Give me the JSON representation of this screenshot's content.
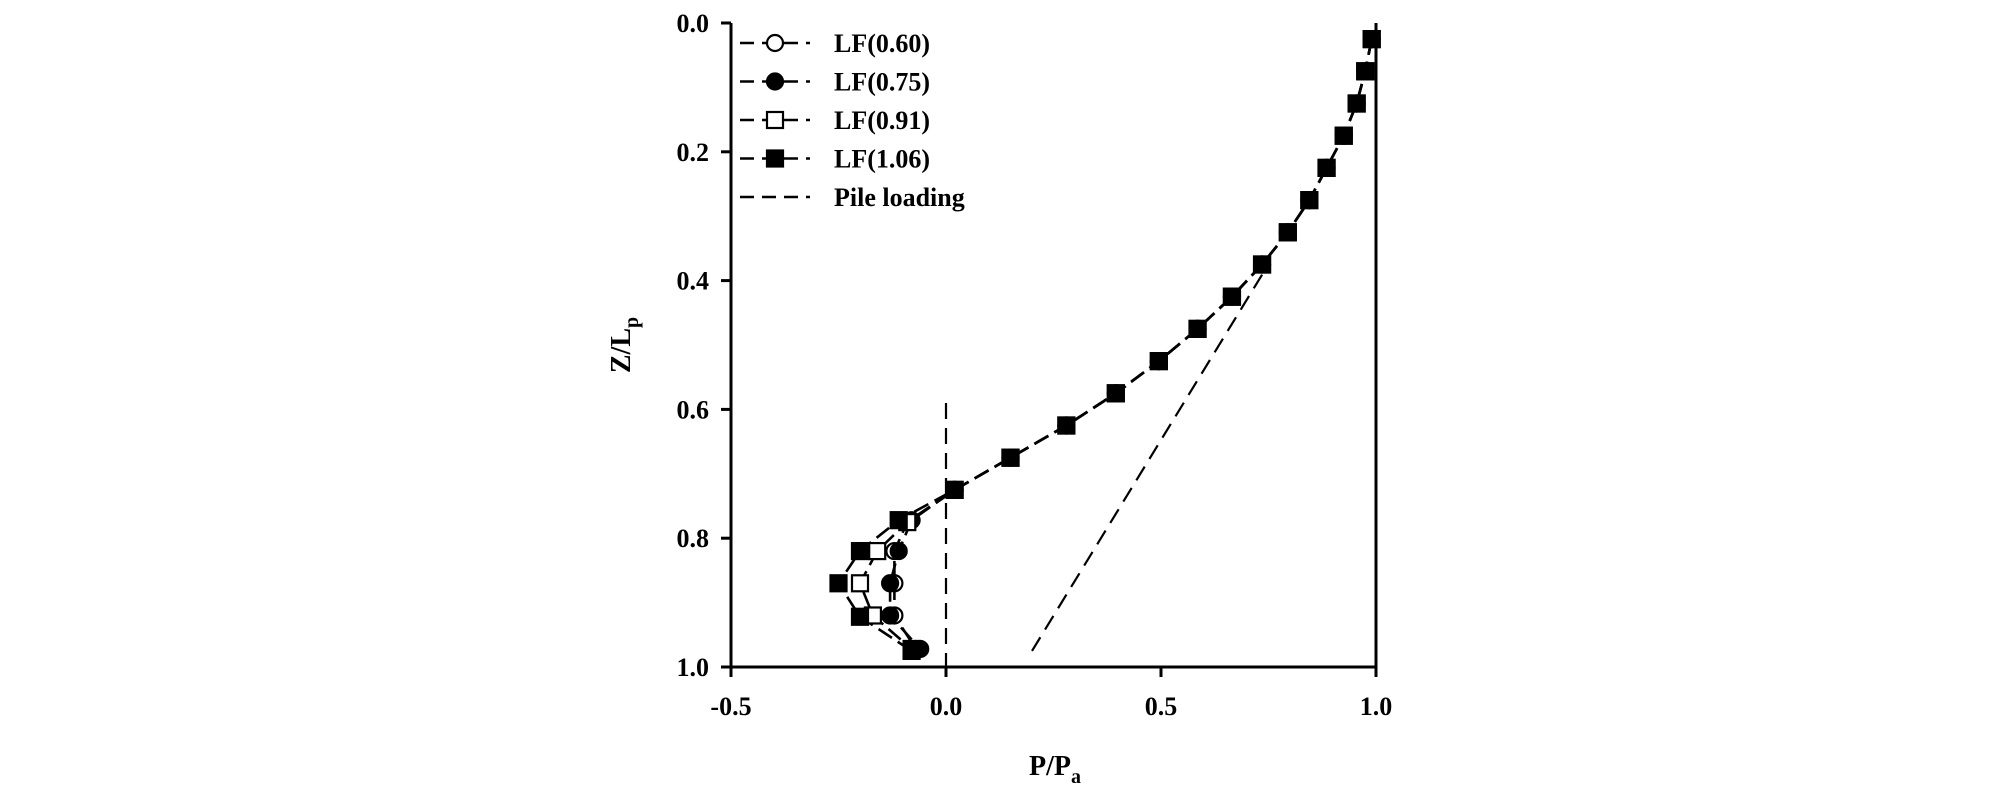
{
  "chart_data": {
    "type": "line",
    "title": "",
    "xlabel": "P/P",
    "xlabel_sub": "a",
    "ylabel": "Z/L",
    "ylabel_sub": "p",
    "xlim": [
      -0.5,
      1.0
    ],
    "ylim": [
      0.0,
      1.0
    ],
    "y_inverted": true,
    "grid": false,
    "legend_position": "top-left",
    "x_ticks": [
      {
        "value": -0.5,
        "label": "-0.5"
      },
      {
        "value": 0.0,
        "label": "0.0"
      },
      {
        "value": 0.5,
        "label": "0.5"
      },
      {
        "value": 1.0,
        "label": "1.0"
      }
    ],
    "y_ticks": [
      {
        "value": 0.0,
        "label": "0.0"
      },
      {
        "value": 0.2,
        "label": "0.2"
      },
      {
        "value": 0.4,
        "label": "0.4"
      },
      {
        "value": 0.6,
        "label": "0.6"
      },
      {
        "value": 0.8,
        "label": "0.8"
      },
      {
        "value": 1.0,
        "label": "1.0"
      }
    ],
    "series": [
      {
        "name": "LF(0.60)",
        "marker": "circle",
        "filled": false,
        "points": [
          [
            0.99,
            0.025
          ],
          [
            0.975,
            0.075
          ],
          [
            0.955,
            0.125
          ],
          [
            0.925,
            0.175
          ],
          [
            0.885,
            0.225
          ],
          [
            0.845,
            0.275
          ],
          [
            0.795,
            0.325
          ],
          [
            0.735,
            0.375
          ],
          [
            0.665,
            0.425
          ],
          [
            0.585,
            0.475
          ],
          [
            0.495,
            0.525
          ],
          [
            0.395,
            0.575
          ],
          [
            0.28,
            0.625
          ],
          [
            0.15,
            0.675
          ],
          [
            0.02,
            0.725
          ],
          [
            -0.09,
            0.775
          ],
          [
            -0.12,
            0.82
          ],
          [
            -0.12,
            0.87
          ],
          [
            -0.12,
            0.92
          ],
          [
            -0.07,
            0.972
          ]
        ]
      },
      {
        "name": "LF(0.75)",
        "marker": "circle",
        "filled": true,
        "points": [
          [
            0.99,
            0.025
          ],
          [
            0.975,
            0.075
          ],
          [
            0.955,
            0.125
          ],
          [
            0.925,
            0.175
          ],
          [
            0.885,
            0.225
          ],
          [
            0.845,
            0.275
          ],
          [
            0.795,
            0.325
          ],
          [
            0.735,
            0.375
          ],
          [
            0.665,
            0.425
          ],
          [
            0.585,
            0.475
          ],
          [
            0.495,
            0.525
          ],
          [
            0.395,
            0.575
          ],
          [
            0.28,
            0.625
          ],
          [
            0.15,
            0.675
          ],
          [
            0.02,
            0.725
          ],
          [
            -0.08,
            0.772
          ],
          [
            -0.11,
            0.82
          ],
          [
            -0.13,
            0.87
          ],
          [
            -0.13,
            0.92
          ],
          [
            -0.06,
            0.972
          ]
        ]
      },
      {
        "name": "LF(0.91)",
        "marker": "square",
        "filled": false,
        "points": [
          [
            0.99,
            0.025
          ],
          [
            0.975,
            0.075
          ],
          [
            0.955,
            0.125
          ],
          [
            0.925,
            0.175
          ],
          [
            0.885,
            0.225
          ],
          [
            0.845,
            0.275
          ],
          [
            0.795,
            0.325
          ],
          [
            0.735,
            0.375
          ],
          [
            0.665,
            0.425
          ],
          [
            0.585,
            0.475
          ],
          [
            0.495,
            0.525
          ],
          [
            0.395,
            0.575
          ],
          [
            0.28,
            0.625
          ],
          [
            0.15,
            0.675
          ],
          [
            0.02,
            0.725
          ],
          [
            -0.09,
            0.775
          ],
          [
            -0.16,
            0.82
          ],
          [
            -0.2,
            0.87
          ],
          [
            -0.17,
            0.92
          ],
          [
            -0.08,
            0.972
          ]
        ]
      },
      {
        "name": "LF(1.06)",
        "marker": "square",
        "filled": true,
        "points": [
          [
            0.99,
            0.025
          ],
          [
            0.975,
            0.075
          ],
          [
            0.955,
            0.125
          ],
          [
            0.925,
            0.175
          ],
          [
            0.885,
            0.225
          ],
          [
            0.845,
            0.275
          ],
          [
            0.795,
            0.325
          ],
          [
            0.735,
            0.375
          ],
          [
            0.665,
            0.425
          ],
          [
            0.585,
            0.475
          ],
          [
            0.495,
            0.525
          ],
          [
            0.395,
            0.575
          ],
          [
            0.28,
            0.625
          ],
          [
            0.15,
            0.675
          ],
          [
            0.02,
            0.725
          ],
          [
            -0.11,
            0.772
          ],
          [
            -0.2,
            0.82
          ],
          [
            -0.25,
            0.87
          ],
          [
            -0.2,
            0.922
          ],
          [
            -0.08,
            0.975
          ]
        ]
      }
    ],
    "reference_lines": [
      {
        "name": "Pile loading",
        "points": [
          [
            0.2,
            0.975
          ],
          [
            0.745,
            0.38
          ]
        ]
      },
      {
        "name": "zero-line",
        "points": [
          [
            0.0,
            0.59
          ],
          [
            0.0,
            1.0
          ]
        ]
      }
    ],
    "legend": [
      {
        "label": "LF(0.60)",
        "marker": "circle",
        "filled": false
      },
      {
        "label": "LF(0.75)",
        "marker": "circle",
        "filled": true
      },
      {
        "label": "LF(0.91)",
        "marker": "square",
        "filled": false
      },
      {
        "label": "LF(1.06)",
        "marker": "square",
        "filled": true
      },
      {
        "label": "Pile loading",
        "marker": "none",
        "filled": false
      }
    ]
  }
}
